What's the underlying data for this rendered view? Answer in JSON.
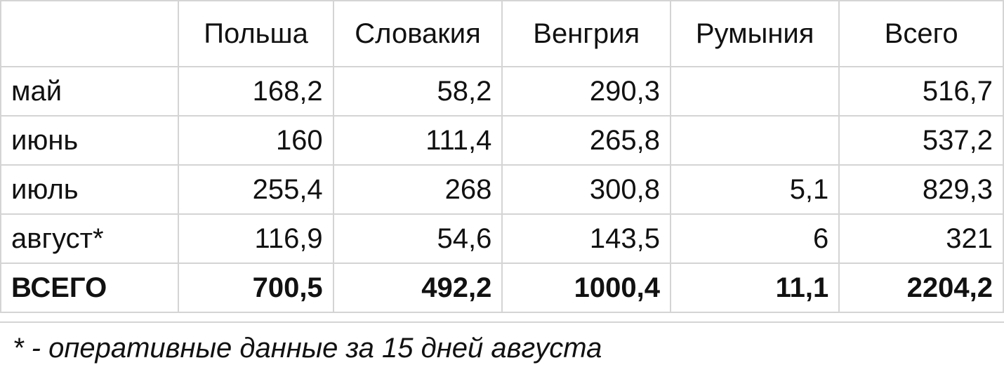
{
  "table": {
    "headers": [
      "",
      "Польша",
      "Словакия",
      "Венгрия",
      "Румыния",
      "Всего"
    ],
    "rows": [
      [
        "май",
        "168,2",
        "58,2",
        "290,3",
        "",
        "516,7"
      ],
      [
        "июнь",
        "160",
        "111,4",
        "265,8",
        "",
        "537,2"
      ],
      [
        "июль",
        "255,4",
        "268",
        "300,8",
        "5,1",
        "829,3"
      ],
      [
        "август*",
        "116,9",
        "54,6",
        "143,5",
        "6",
        "321"
      ]
    ],
    "total": [
      "ВСЕГО",
      "700,5",
      "492,2",
      "1000,4",
      "11,1",
      "2204,2"
    ]
  },
  "footnote": "* - оперативные данные за 15 дней августа"
}
